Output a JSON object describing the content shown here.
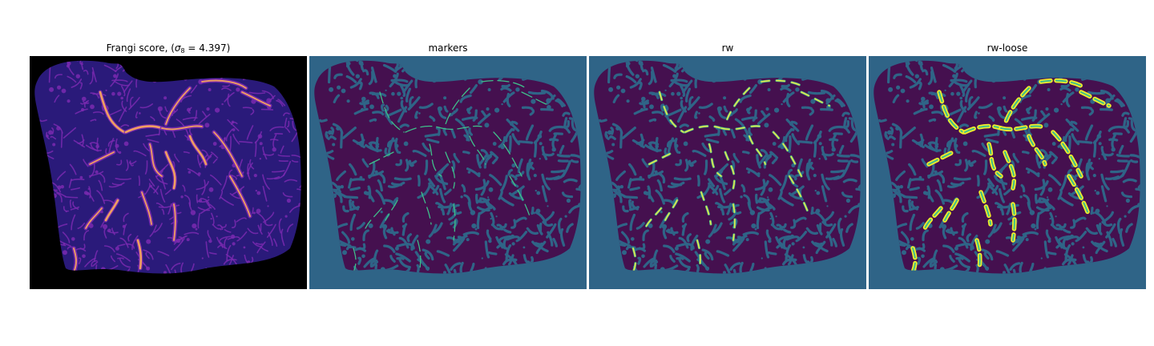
{
  "figure": {
    "panels": [
      {
        "id": "frangi",
        "title_prefix": "Frangi score, (",
        "title_sigma": "σ",
        "title_sub": "8",
        "title_suffix": " = 4.397)",
        "background_color": "#000000",
        "tissue_color": "#2a1a7a",
        "structure_color": "#7a2ab0",
        "vessel_color": "#f0a060",
        "colormap": "magma"
      },
      {
        "id": "markers",
        "title": "markers",
        "background_color": "#2f6487",
        "tissue_color": "#45104f",
        "marker_color": "#3fbf8a",
        "colormap": "viridis"
      },
      {
        "id": "rw",
        "title": "rw",
        "background_color": "#2f6487",
        "tissue_color": "#45104f",
        "vessel_color": "#e8e34a",
        "colormap": "viridis"
      },
      {
        "id": "rw-loose",
        "title": "rw-loose",
        "background_color": "#2f6487",
        "tissue_color": "#45104f",
        "vessel_color": "#f0ec2a",
        "colormap": "viridis"
      }
    ]
  }
}
